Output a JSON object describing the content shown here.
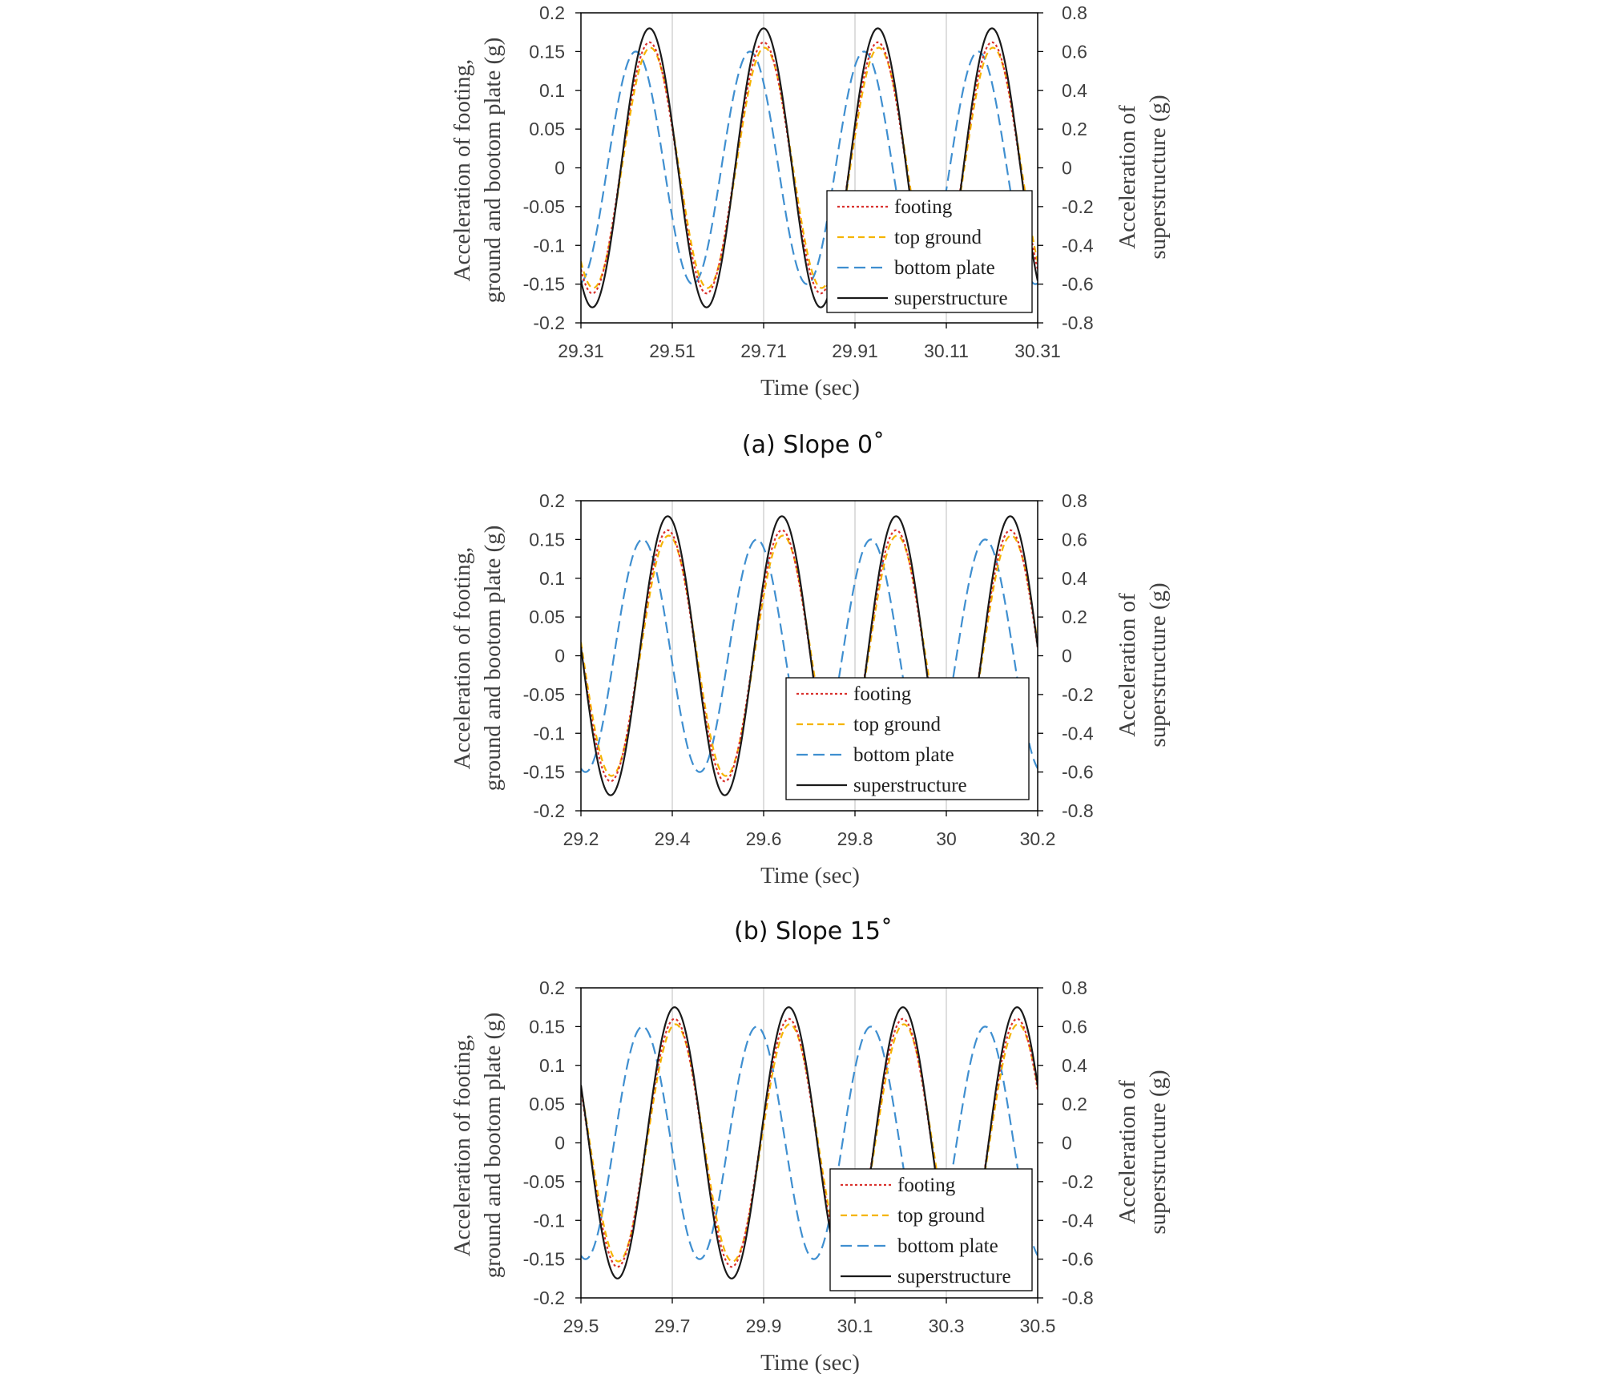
{
  "colors": {
    "footing": "#d9322e",
    "top_ground": "#f5b400",
    "bottom_plate": "#3f8fd0",
    "superstructure": "#1a1a1a",
    "grid": "#d4d4d4",
    "frame": "#000000"
  },
  "chart_data": [
    {
      "type": "line",
      "caption": "(a) Slope 0˚",
      "xlabel": "Time (sec)",
      "ylabel_left": [
        "Acceleration of footing,",
        "ground and bootom plate (g)"
      ],
      "ylabel_right": [
        "Acceleration of",
        "superstructure (g)"
      ],
      "xlim": [
        29.31,
        30.31
      ],
      "ylim_left": [
        -0.2,
        0.2
      ],
      "ylim_right": [
        -0.8,
        0.8
      ],
      "xticks": [
        "29.31",
        "29.51",
        "29.71",
        "29.91",
        "30.11",
        "30.31"
      ],
      "yticks_left": [
        "0.2",
        "0.15",
        "0.1",
        "0.05",
        "0",
        "-0.05",
        "-0.1",
        "-0.15",
        "-0.2"
      ],
      "yticks_right": [
        "0.8",
        "0.6",
        "0.4",
        "0.2",
        "0",
        "-0.2",
        "-0.4",
        "-0.6",
        "-0.8"
      ],
      "grid": "vertical",
      "legend_position": "bottom-right",
      "series": [
        {
          "name": "footing",
          "axis": "left",
          "style": "dotted",
          "amplitude": 0.162,
          "period": 0.25,
          "peak_time": 29.46
        },
        {
          "name": "top ground",
          "axis": "left",
          "style": "dashed",
          "amplitude": 0.155,
          "period": 0.25,
          "peak_time": 29.462
        },
        {
          "name": "bottom plate",
          "axis": "left",
          "style": "longdash",
          "amplitude": 0.15,
          "period": 0.25,
          "peak_time": 29.43
        },
        {
          "name": "superstructure",
          "axis": "right",
          "style": "solid",
          "amplitude": 0.72,
          "period": 0.25,
          "peak_time": 29.46
        }
      ]
    },
    {
      "type": "line",
      "caption": "(b) Slope 15˚",
      "xlabel": "Time (sec)",
      "ylabel_left": [
        "Acceleration of footing,",
        "ground and bootom plate (g)"
      ],
      "ylabel_right": [
        "Acceleration of",
        "superstructure (g)"
      ],
      "xlim": [
        29.2,
        30.2
      ],
      "ylim_left": [
        -0.2,
        0.2
      ],
      "ylim_right": [
        -0.8,
        0.8
      ],
      "xticks": [
        "29.2",
        "29.4",
        "29.6",
        "29.8",
        "30",
        "30.2"
      ],
      "yticks_left": [
        "0.2",
        "0.15",
        "0.1",
        "0.05",
        "0",
        "-0.05",
        "-0.1",
        "-0.15",
        "-0.2"
      ],
      "yticks_right": [
        "0.8",
        "0.6",
        "0.4",
        "0.2",
        "0",
        "-0.2",
        "-0.4",
        "-0.6",
        "-0.8"
      ],
      "grid": "vertical",
      "legend_position": "bottom-right",
      "series": [
        {
          "name": "footing",
          "axis": "left",
          "style": "dotted",
          "amplitude": 0.162,
          "period": 0.25,
          "peak_time": 29.39
        },
        {
          "name": "top ground",
          "axis": "left",
          "style": "dashed",
          "amplitude": 0.155,
          "period": 0.25,
          "peak_time": 29.392
        },
        {
          "name": "bottom plate",
          "axis": "left",
          "style": "longdash",
          "amplitude": 0.15,
          "period": 0.25,
          "peak_time": 29.335
        },
        {
          "name": "superstructure",
          "axis": "right",
          "style": "solid",
          "amplitude": 0.72,
          "period": 0.25,
          "peak_time": 29.39
        }
      ]
    },
    {
      "type": "line",
      "caption": "",
      "xlabel": "Time (sec)",
      "ylabel_left": [
        "Acceleration of footing,",
        "ground and bootom plate (g)"
      ],
      "ylabel_right": [
        "Acceleration of",
        "superstructure (g)"
      ],
      "xlim": [
        29.5,
        30.5
      ],
      "ylim_left": [
        -0.2,
        0.2
      ],
      "ylim_right": [
        -0.8,
        0.8
      ],
      "xticks": [
        "29.5",
        "29.7",
        "29.9",
        "30.1",
        "30.3",
        "30.5"
      ],
      "yticks_left": [
        "0.2",
        "0.15",
        "0.1",
        "0.05",
        "0",
        "-0.05",
        "-0.1",
        "-0.15",
        "-0.2"
      ],
      "yticks_right": [
        "0.8",
        "0.6",
        "0.4",
        "0.2",
        "0",
        "-0.2",
        "-0.4",
        "-0.6",
        "-0.8"
      ],
      "grid": "vertical",
      "legend_position": "bottom-right",
      "series": [
        {
          "name": "footing",
          "axis": "left",
          "style": "dotted",
          "amplitude": 0.16,
          "period": 0.25,
          "peak_time": 29.705
        },
        {
          "name": "top ground",
          "axis": "left",
          "style": "dashed",
          "amplitude": 0.153,
          "period": 0.25,
          "peak_time": 29.707
        },
        {
          "name": "bottom plate",
          "axis": "left",
          "style": "longdash",
          "amplitude": 0.15,
          "period": 0.25,
          "peak_time": 29.635
        },
        {
          "name": "superstructure",
          "axis": "right",
          "style": "solid",
          "amplitude": 0.7,
          "period": 0.25,
          "peak_time": 29.705
        }
      ]
    }
  ]
}
